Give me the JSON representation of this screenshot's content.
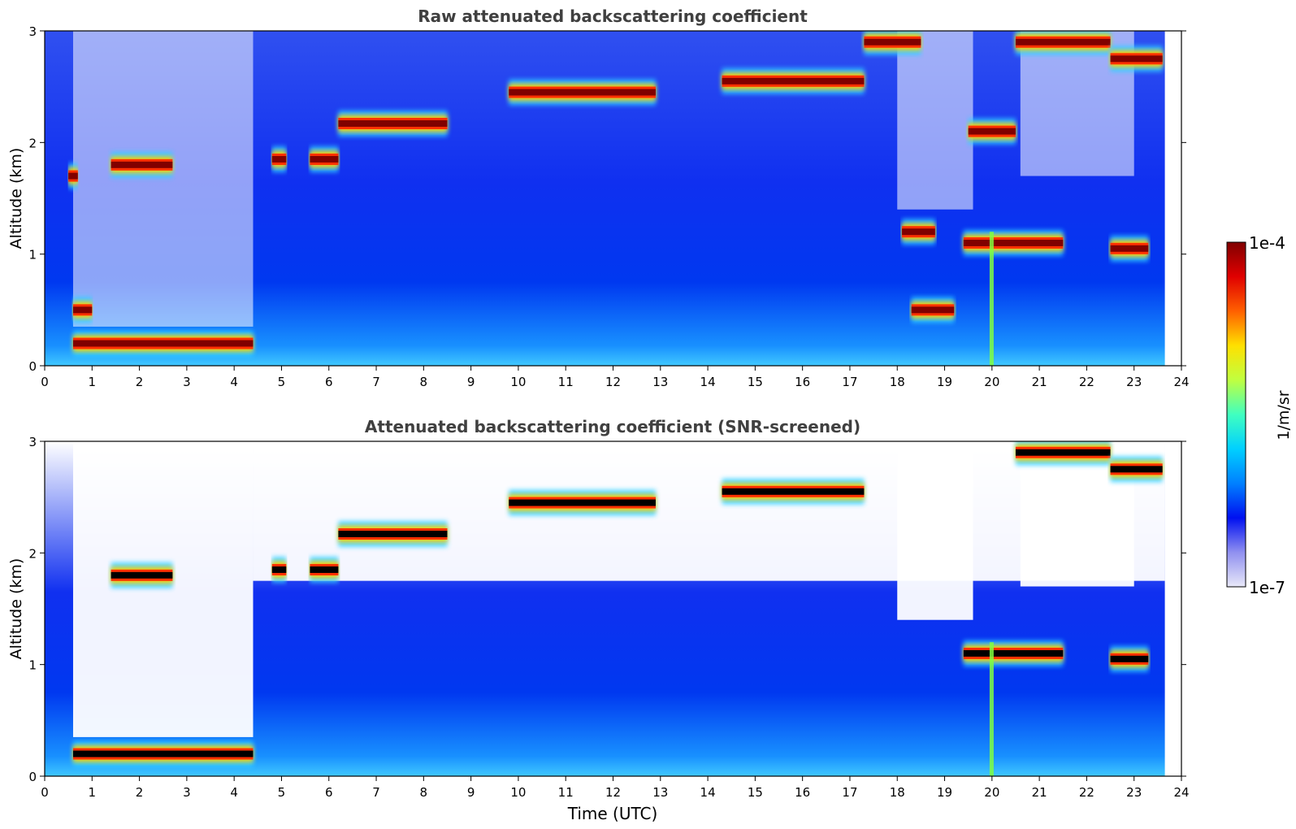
{
  "chart_data": [
    {
      "type": "heatmap",
      "title": "Raw attenuated backscattering coefficient",
      "xlabel": "",
      "ylabel": "Altitude (km)",
      "xlim": [
        0,
        24
      ],
      "ylim": [
        0,
        3
      ],
      "xticks": [
        "0",
        "1",
        "2",
        "3",
        "4",
        "5",
        "6",
        "7",
        "8",
        "9",
        "10",
        "11",
        "12",
        "13",
        "14",
        "15",
        "16",
        "17",
        "18",
        "19",
        "20",
        "21",
        "22",
        "23",
        "24"
      ],
      "yticks": [
        "0",
        "1",
        "2",
        "3"
      ],
      "data_end_time": 23.65,
      "grid": false,
      "cloud_layers": [
        {
          "t_start": 0.6,
          "t_end": 4.4,
          "alt_km": 0.2
        },
        {
          "t_start": 0.6,
          "t_end": 1.0,
          "alt_km": 0.5
        },
        {
          "t_start": 1.4,
          "t_end": 2.7,
          "alt_km": 1.8
        },
        {
          "t_start": 0.5,
          "t_end": 0.7,
          "alt_km": 1.7
        },
        {
          "t_start": 4.8,
          "t_end": 5.1,
          "alt_km": 1.85
        },
        {
          "t_start": 5.6,
          "t_end": 6.2,
          "alt_km": 1.85
        },
        {
          "t_start": 6.2,
          "t_end": 8.5,
          "alt_km": 2.17
        },
        {
          "t_start": 9.8,
          "t_end": 12.9,
          "alt_km": 2.45
        },
        {
          "t_start": 14.3,
          "t_end": 17.3,
          "alt_km": 2.55
        },
        {
          "t_start": 17.3,
          "t_end": 18.5,
          "alt_km": 2.9
        },
        {
          "t_start": 19.5,
          "t_end": 20.5,
          "alt_km": 2.1
        },
        {
          "t_start": 20.5,
          "t_end": 22.5,
          "alt_km": 2.9
        },
        {
          "t_start": 22.5,
          "t_end": 23.6,
          "alt_km": 2.75
        },
        {
          "t_start": 18.1,
          "t_end": 18.8,
          "alt_km": 1.2
        },
        {
          "t_start": 18.3,
          "t_end": 19.2,
          "alt_km": 0.5
        },
        {
          "t_start": 19.4,
          "t_end": 21.5,
          "alt_km": 1.1
        },
        {
          "t_start": 22.5,
          "t_end": 23.3,
          "alt_km": 1.05
        }
      ]
    },
    {
      "type": "heatmap",
      "title": "Attenuated backscattering coefficient (SNR-screened)",
      "xlabel": "Time (UTC)",
      "ylabel": "Altitude (km)",
      "xlim": [
        0,
        24
      ],
      "ylim": [
        0,
        3
      ],
      "xticks": [
        "0",
        "1",
        "2",
        "3",
        "4",
        "5",
        "6",
        "7",
        "8",
        "9",
        "10",
        "11",
        "12",
        "13",
        "14",
        "15",
        "16",
        "17",
        "18",
        "19",
        "20",
        "21",
        "22",
        "23",
        "24"
      ],
      "yticks": [
        "0",
        "1",
        "2",
        "3"
      ],
      "data_end_time": 23.65,
      "grid": false,
      "cloud_layers": [
        {
          "t_start": 0.6,
          "t_end": 4.4,
          "alt_km": 0.2
        },
        {
          "t_start": 1.4,
          "t_end": 2.7,
          "alt_km": 1.8
        },
        {
          "t_start": 4.8,
          "t_end": 5.1,
          "alt_km": 1.85
        },
        {
          "t_start": 5.6,
          "t_end": 6.2,
          "alt_km": 1.85
        },
        {
          "t_start": 6.2,
          "t_end": 8.5,
          "alt_km": 2.17
        },
        {
          "t_start": 9.8,
          "t_end": 12.9,
          "alt_km": 2.45
        },
        {
          "t_start": 14.3,
          "t_end": 17.3,
          "alt_km": 2.55
        },
        {
          "t_start": 20.5,
          "t_end": 22.5,
          "alt_km": 2.9
        },
        {
          "t_start": 22.5,
          "t_end": 23.6,
          "alt_km": 2.75
        },
        {
          "t_start": 19.4,
          "t_end": 21.5,
          "alt_km": 1.1
        },
        {
          "t_start": 22.5,
          "t_end": 23.3,
          "alt_km": 1.05
        }
      ]
    }
  ],
  "colorbar": {
    "label": "1/m/sr",
    "max_label": "1e-4",
    "min_label": "1e-7",
    "scale": "log",
    "colors": [
      "#e8e8f8",
      "#9090f0",
      "#0010f0",
      "#0080ff",
      "#00d0ff",
      "#40ffc0",
      "#c0ff40",
      "#ffe000",
      "#ff6000",
      "#e00000",
      "#800000"
    ]
  }
}
